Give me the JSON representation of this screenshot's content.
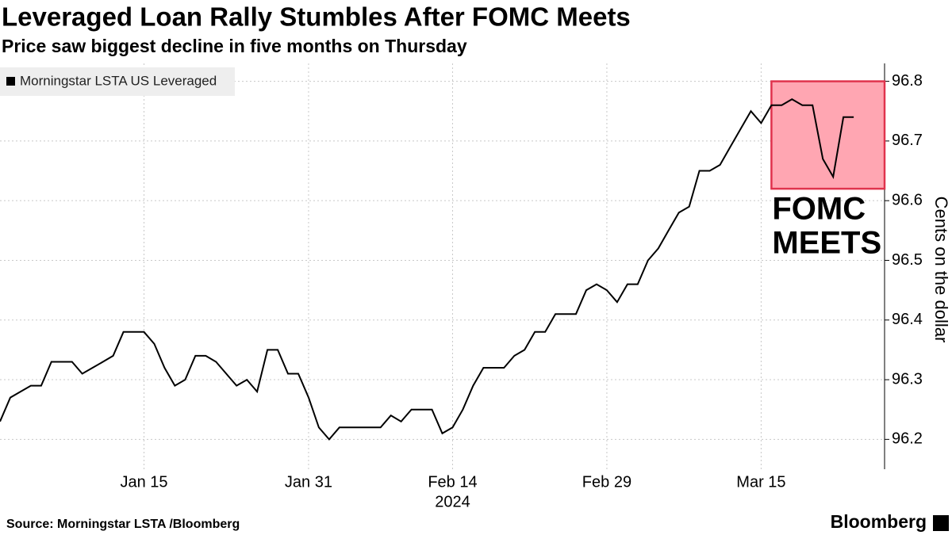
{
  "chart_data": {
    "type": "line",
    "title": "Leveraged Loan Rally Stumbles After FOMC Meets",
    "subtitle": "Price saw biggest decline in five months on Thursday",
    "ylabel": "Cents on the dollar",
    "xlabel": "2024",
    "source": "Source: Morningstar LSTA /Bloomberg",
    "brand": "Bloomberg",
    "x": [
      "2024-01-01",
      "2024-01-02",
      "2024-01-03",
      "2024-01-04",
      "2024-01-05",
      "2024-01-06",
      "2024-01-07",
      "2024-01-08",
      "2024-01-09",
      "2024-01-10",
      "2024-01-11",
      "2024-01-12",
      "2024-01-13",
      "2024-01-14",
      "2024-01-15",
      "2024-01-16",
      "2024-01-17",
      "2024-01-18",
      "2024-01-19",
      "2024-01-20",
      "2024-01-21",
      "2024-01-22",
      "2024-01-23",
      "2024-01-24",
      "2024-01-25",
      "2024-01-26",
      "2024-01-27",
      "2024-01-28",
      "2024-01-29",
      "2024-01-30",
      "2024-01-31",
      "2024-02-01",
      "2024-02-02",
      "2024-02-03",
      "2024-02-04",
      "2024-02-05",
      "2024-02-06",
      "2024-02-07",
      "2024-02-08",
      "2024-02-09",
      "2024-02-10",
      "2024-02-11",
      "2024-02-12",
      "2024-02-13",
      "2024-02-14",
      "2024-02-15",
      "2024-02-16",
      "2024-02-17",
      "2024-02-18",
      "2024-02-19",
      "2024-02-20",
      "2024-02-21",
      "2024-02-22",
      "2024-02-23",
      "2024-02-24",
      "2024-02-25",
      "2024-02-26",
      "2024-02-27",
      "2024-02-28",
      "2024-02-29",
      "2024-03-01",
      "2024-03-02",
      "2024-03-03",
      "2024-03-04",
      "2024-03-05",
      "2024-03-06",
      "2024-03-07",
      "2024-03-08",
      "2024-03-09",
      "2024-03-10",
      "2024-03-11",
      "2024-03-12",
      "2024-03-13",
      "2024-03-14",
      "2024-03-15",
      "2024-03-16",
      "2024-03-17",
      "2024-03-18",
      "2024-03-19",
      "2024-03-20",
      "2024-03-21",
      "2024-03-22",
      "2024-03-23",
      "2024-03-24"
    ],
    "series": [
      {
        "name": "Morningstar LSTA US Leveraged",
        "color": "#000000",
        "values": [
          96.23,
          96.27,
          96.28,
          96.29,
          96.29,
          96.33,
          96.33,
          96.33,
          96.31,
          96.32,
          96.33,
          96.34,
          96.38,
          96.38,
          96.38,
          96.36,
          96.32,
          96.29,
          96.3,
          96.34,
          96.34,
          96.33,
          96.31,
          96.29,
          96.3,
          96.28,
          96.35,
          96.35,
          96.31,
          96.31,
          96.27,
          96.22,
          96.2,
          96.22,
          96.22,
          96.22,
          96.22,
          96.22,
          96.24,
          96.23,
          96.25,
          96.25,
          96.25,
          96.21,
          96.22,
          96.25,
          96.29,
          96.32,
          96.32,
          96.32,
          96.34,
          96.35,
          96.38,
          96.38,
          96.41,
          96.41,
          96.41,
          96.45,
          96.46,
          96.45,
          96.43,
          96.46,
          96.46,
          96.5,
          96.52,
          96.55,
          96.58,
          96.59,
          96.65,
          96.65,
          96.66,
          96.69,
          96.72,
          96.75,
          96.73,
          96.76,
          96.76,
          96.77,
          96.76,
          96.76,
          96.67,
          96.64,
          96.74,
          96.74
        ]
      }
    ],
    "xlim": [
      "2024-01-01",
      "2024-03-27"
    ],
    "xticks": [
      {
        "value": "2024-01-15",
        "label": "Jan 15"
      },
      {
        "value": "2024-01-31",
        "label": "Jan 31"
      },
      {
        "value": "2024-02-14",
        "label": "Feb 14"
      },
      {
        "value": "2024-02-29",
        "label": "Feb 29"
      },
      {
        "value": "2024-03-15",
        "label": "Mar 15"
      }
    ],
    "ylim": [
      96.15,
      96.83
    ],
    "yticks": [
      96.2,
      96.3,
      96.4,
      96.5,
      96.6,
      96.7,
      96.8
    ],
    "grid": true,
    "legend": "top-left",
    "annotation": {
      "text": [
        "FOMC",
        "MEETS"
      ],
      "x0": "2024-03-16",
      "y0": 96.62,
      "y1": 96.8,
      "color": "#ffa6b2",
      "border": "#e0334d"
    }
  }
}
